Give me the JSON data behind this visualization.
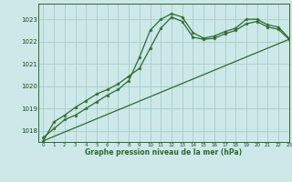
{
  "background_color": "#cce8e8",
  "grid_color": "#aacccc",
  "line_color": "#2d6a2d",
  "xlabel": "Graphe pression niveau de la mer (hPa)",
  "xlim": [
    -0.5,
    23
  ],
  "ylim": [
    1017.5,
    1023.7
  ],
  "yticks": [
    1018,
    1019,
    1020,
    1021,
    1022,
    1023
  ],
  "xticks": [
    0,
    1,
    2,
    3,
    4,
    5,
    6,
    7,
    8,
    9,
    10,
    11,
    12,
    13,
    14,
    15,
    16,
    17,
    18,
    19,
    20,
    21,
    22,
    23
  ],
  "series": [
    {
      "x": [
        0,
        1,
        2,
        3,
        4,
        5,
        6,
        7,
        8,
        9,
        10,
        11,
        12,
        13,
        14,
        15,
        16,
        17,
        18,
        19,
        20,
        21,
        22,
        23
      ],
      "y": [
        1017.7,
        1018.1,
        1018.5,
        1018.7,
        1019.0,
        1019.3,
        1019.6,
        1019.85,
        1020.25,
        1021.3,
        1022.5,
        1023.0,
        1023.25,
        1023.1,
        1022.4,
        1022.15,
        1022.25,
        1022.45,
        1022.6,
        1023.0,
        1023.0,
        1022.75,
        1022.65,
        1022.15
      ],
      "marker": true
    },
    {
      "x": [
        0,
        1,
        2,
        3,
        4,
        5,
        6,
        7,
        8,
        9,
        10,
        11,
        12,
        13,
        14,
        15,
        16,
        17,
        18,
        19,
        20,
        21,
        22,
        23
      ],
      "y": [
        1017.55,
        1018.4,
        1018.7,
        1019.05,
        1019.35,
        1019.65,
        1019.85,
        1020.1,
        1020.45,
        1020.8,
        1021.7,
        1022.6,
        1023.1,
        1022.9,
        1022.2,
        1022.1,
        1022.15,
        1022.35,
        1022.5,
        1022.8,
        1022.9,
        1022.65,
        1022.55,
        1022.1
      ],
      "marker": true
    },
    {
      "x": [
        0,
        23
      ],
      "y": [
        1017.55,
        1022.1
      ],
      "marker": false
    }
  ]
}
